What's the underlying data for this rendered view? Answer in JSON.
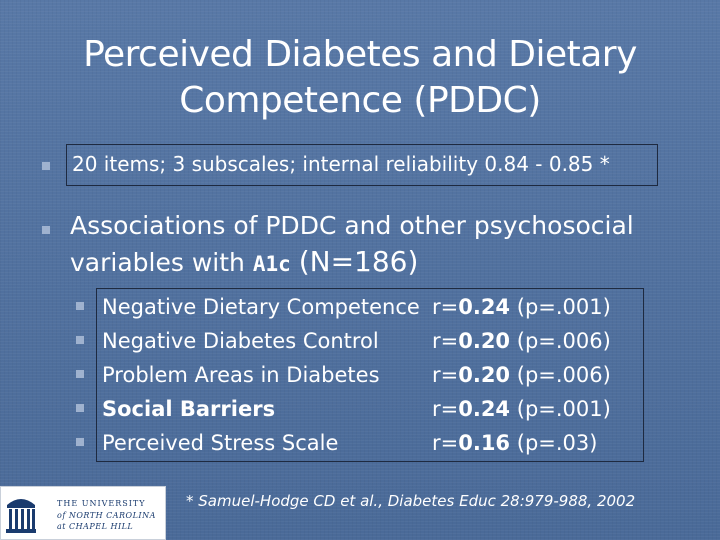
{
  "slide": {
    "title": "Perceived Diabetes and Dietary Competence (PDDC)",
    "bullet1": "20 items; 3 subscales; internal reliability 0.84 - 0.85 *",
    "bullet2": {
      "prefix": "Associations of PDDC and other psychosocial variables with ",
      "bold_term": "A1c",
      "sample": "(N=186)"
    },
    "associations": [
      {
        "label": "Negative Dietary Competence",
        "r_prefix": "r=",
        "r_value": "0.24",
        "p": "(p=.001)",
        "bold_label": false
      },
      {
        "label": "Negative Diabetes Control",
        "r_prefix": "r=",
        "r_value": "0.20",
        "p": "(p=.006)",
        "bold_label": false
      },
      {
        "label": "Problem Areas in Diabetes",
        "r_prefix": "r=",
        "r_value": "0.20",
        "p": "(p=.006)",
        "bold_label": false
      },
      {
        "label": "Social Barriers",
        "r_prefix": "r=",
        "r_value": "0.24",
        "p": "(p=.001)",
        "bold_label": true
      },
      {
        "label": "Perceived Stress Scale",
        "r_prefix": "r=",
        "r_value": "0.16",
        "p": "(p=.03)",
        "bold_label": false
      }
    ],
    "citation": "* Samuel-Hodge CD et al., Diabetes Educ 28:979-988, 2002"
  },
  "logo": {
    "line1": "THE UNIVERSITY",
    "line2": "of NORTH CAROLINA",
    "line3": "at CHAPEL HILL",
    "icon": "old-well-icon"
  },
  "colors": {
    "background": "#4f6f9c",
    "bullet": "#9fb2cf",
    "box_border": "#1e2a40",
    "logo_text": "#1a3b6e"
  }
}
